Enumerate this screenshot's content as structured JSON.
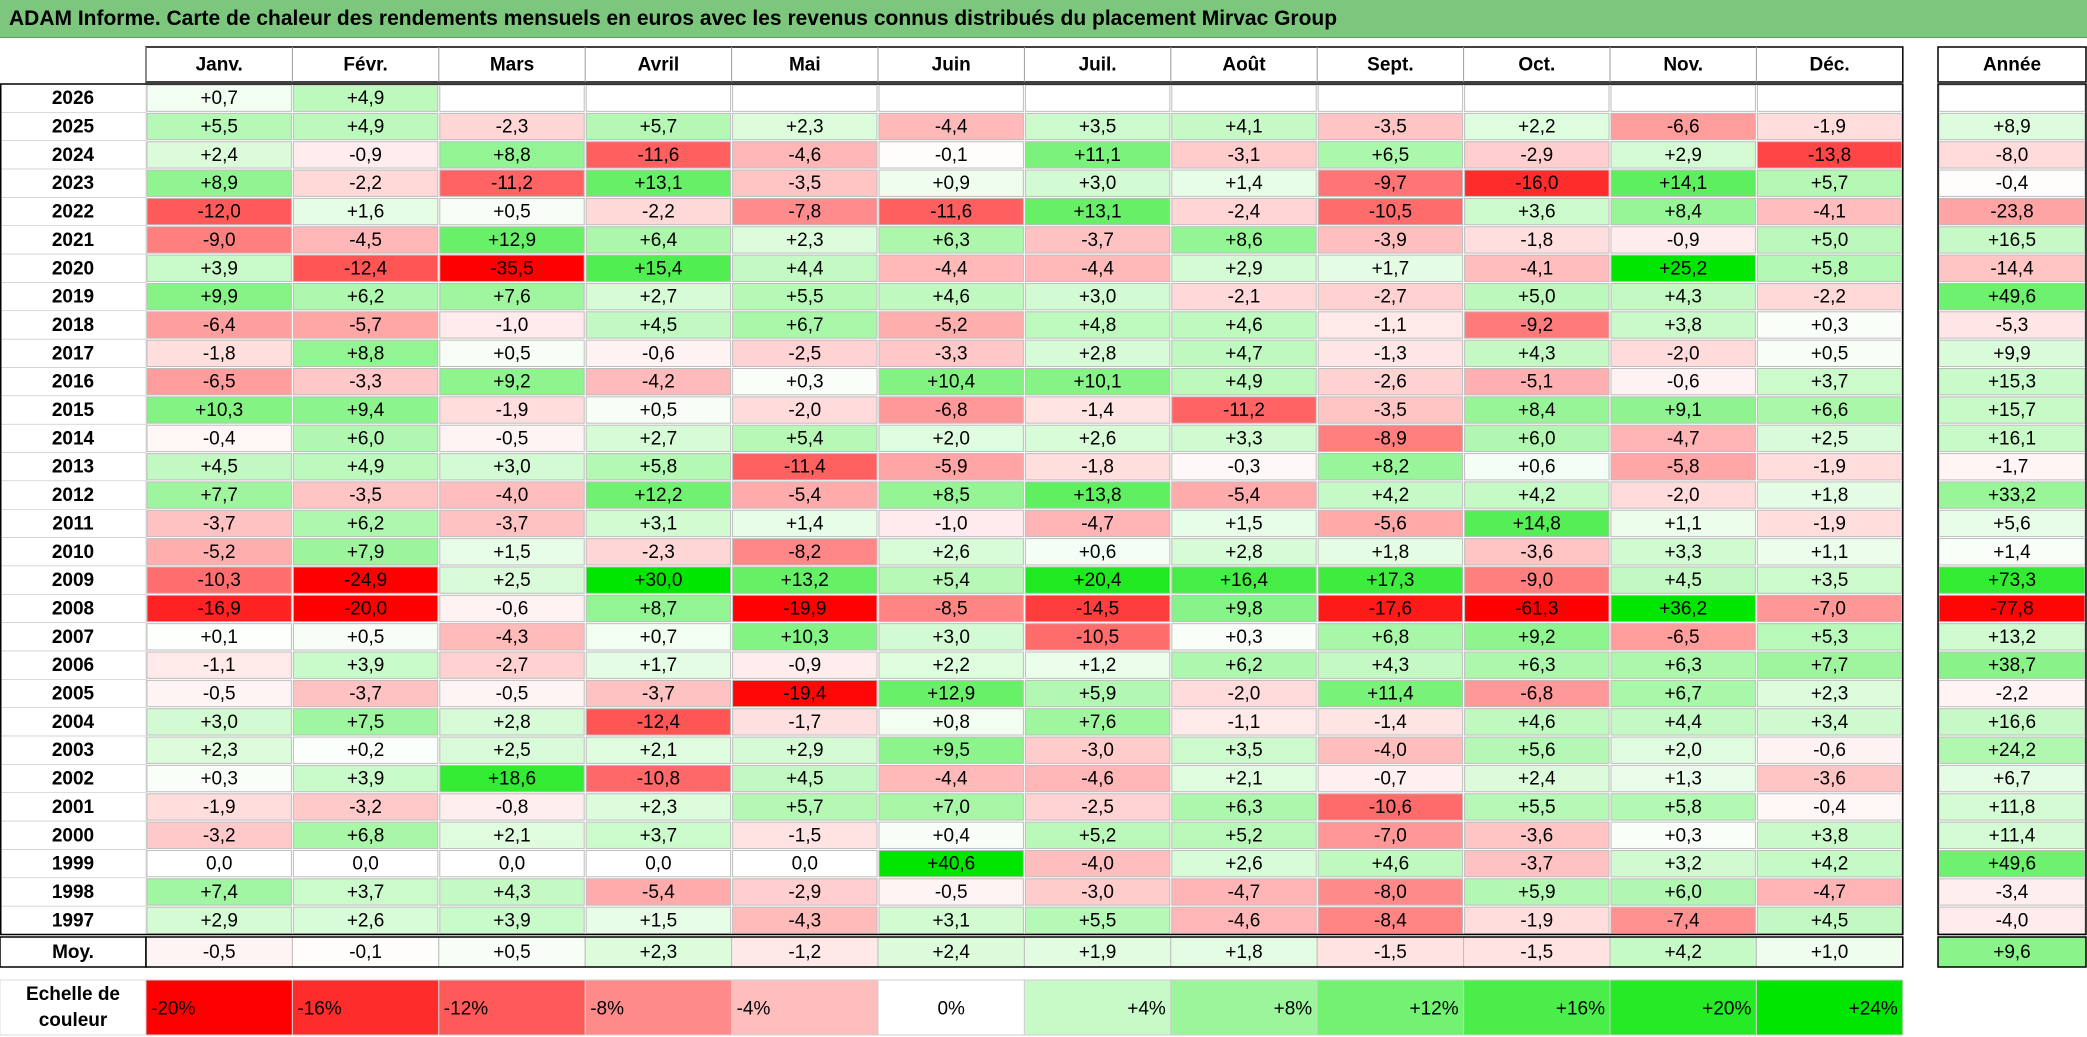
{
  "title": "ADAM Informe. Carte de chaleur des rendements mensuels en euros avec les revenus connus distribués du placement Mirvac Group",
  "chart_data": {
    "type": "heatmap",
    "columns": [
      "Janv.",
      "Févr.",
      "Mars",
      "Avril",
      "Mai",
      "Juin",
      "Juil.",
      "Août",
      "Sept.",
      "Oct.",
      "Nov.",
      "Déc."
    ],
    "year_header": "Année",
    "rows": [
      {
        "year": "2026",
        "months": [
          "+0,7",
          "+4,9",
          "",
          "",
          "",
          "",
          "",
          "",
          "",
          "",
          "",
          ""
        ],
        "annual": ""
      },
      {
        "year": "2025",
        "months": [
          "+5,5",
          "+4,9",
          "-2,3",
          "+5,7",
          "+2,3",
          "-4,4",
          "+3,5",
          "+4,1",
          "-3,5",
          "+2,2",
          "-6,6",
          "-1,9"
        ],
        "annual": "+8,9"
      },
      {
        "year": "2024",
        "months": [
          "+2,4",
          "-0,9",
          "+8,8",
          "-11,6",
          "-4,6",
          "-0,1",
          "+11,1",
          "-3,1",
          "+6,5",
          "-2,9",
          "+2,9",
          "-13,8"
        ],
        "annual": "-8,0"
      },
      {
        "year": "2023",
        "months": [
          "+8,9",
          "-2,2",
          "-11,2",
          "+13,1",
          "-3,5",
          "+0,9",
          "+3,0",
          "+1,4",
          "-9,7",
          "-16,0",
          "+14,1",
          "+5,7"
        ],
        "annual": "-0,4"
      },
      {
        "year": "2022",
        "months": [
          "-12,0",
          "+1,6",
          "+0,5",
          "-2,2",
          "-7,8",
          "-11,6",
          "+13,1",
          "-2,4",
          "-10,5",
          "+3,6",
          "+8,4",
          "-4,1"
        ],
        "annual": "-23,8"
      },
      {
        "year": "2021",
        "months": [
          "-9,0",
          "-4,5",
          "+12,9",
          "+6,4",
          "+2,3",
          "+6,3",
          "-3,7",
          "+8,6",
          "-3,9",
          "-1,8",
          "-0,9",
          "+5,0"
        ],
        "annual": "+16,5"
      },
      {
        "year": "2020",
        "months": [
          "+3,9",
          "-12,4",
          "-35,5",
          "+15,4",
          "+4,4",
          "-4,4",
          "-4,4",
          "+2,9",
          "+1,7",
          "-4,1",
          "+25,2",
          "+5,8"
        ],
        "annual": "-14,4"
      },
      {
        "year": "2019",
        "months": [
          "+9,9",
          "+6,2",
          "+7,6",
          "+2,7",
          "+5,5",
          "+4,6",
          "+3,0",
          "-2,1",
          "-2,7",
          "+5,0",
          "+4,3",
          "-2,2"
        ],
        "annual": "+49,6"
      },
      {
        "year": "2018",
        "months": [
          "-6,4",
          "-5,7",
          "-1,0",
          "+4,5",
          "+6,7",
          "-5,2",
          "+4,8",
          "+4,6",
          "-1,1",
          "-9,2",
          "+3,8",
          "+0,3"
        ],
        "annual": "-5,3"
      },
      {
        "year": "2017",
        "months": [
          "-1,8",
          "+8,8",
          "+0,5",
          "-0,6",
          "-2,5",
          "-3,3",
          "+2,8",
          "+4,7",
          "-1,3",
          "+4,3",
          "-2,0",
          "+0,5"
        ],
        "annual": "+9,9"
      },
      {
        "year": "2016",
        "months": [
          "-6,5",
          "-3,3",
          "+9,2",
          "-4,2",
          "+0,3",
          "+10,4",
          "+10,1",
          "+4,9",
          "-2,6",
          "-5,1",
          "-0,6",
          "+3,7"
        ],
        "annual": "+15,3"
      },
      {
        "year": "2015",
        "months": [
          "+10,3",
          "+9,4",
          "-1,9",
          "+0,5",
          "-2,0",
          "-6,8",
          "-1,4",
          "-11,2",
          "-3,5",
          "+8,4",
          "+9,1",
          "+6,6"
        ],
        "annual": "+15,7"
      },
      {
        "year": "2014",
        "months": [
          "-0,4",
          "+6,0",
          "-0,5",
          "+2,7",
          "+5,4",
          "+2,0",
          "+2,6",
          "+3,3",
          "-8,9",
          "+6,0",
          "-4,7",
          "+2,5"
        ],
        "annual": "+16,1"
      },
      {
        "year": "2013",
        "months": [
          "+4,5",
          "+4,9",
          "+3,0",
          "+5,8",
          "-11,4",
          "-5,9",
          "-1,8",
          "-0,3",
          "+8,2",
          "+0,6",
          "-5,8",
          "-1,9"
        ],
        "annual": "-1,7"
      },
      {
        "year": "2012",
        "months": [
          "+7,7",
          "-3,5",
          "-4,0",
          "+12,2",
          "-5,4",
          "+8,5",
          "+13,8",
          "-5,4",
          "+4,2",
          "+4,2",
          "-2,0",
          "+1,8"
        ],
        "annual": "+33,2"
      },
      {
        "year": "2011",
        "months": [
          "-3,7",
          "+6,2",
          "-3,7",
          "+3,1",
          "+1,4",
          "-1,0",
          "-4,7",
          "+1,5",
          "-5,6",
          "+14,8",
          "+1,1",
          "-1,9"
        ],
        "annual": "+5,6"
      },
      {
        "year": "2010",
        "months": [
          "-5,2",
          "+7,9",
          "+1,5",
          "-2,3",
          "-8,2",
          "+2,6",
          "+0,6",
          "+2,8",
          "+1,8",
          "-3,6",
          "+3,3",
          "+1,1"
        ],
        "annual": "+1,4"
      },
      {
        "year": "2009",
        "months": [
          "-10,3",
          "-24,9",
          "+2,5",
          "+30,0",
          "+13,2",
          "+5,4",
          "+20,4",
          "+16,4",
          "+17,3",
          "-9,0",
          "+4,5",
          "+3,5"
        ],
        "annual": "+73,3"
      },
      {
        "year": "2008",
        "months": [
          "-16,9",
          "-20,0",
          "-0,6",
          "+8,7",
          "-19,9",
          "-8,5",
          "-14,5",
          "+9,8",
          "-17,6",
          "-61,3",
          "+36,2",
          "-7,0"
        ],
        "annual": "-77,8"
      },
      {
        "year": "2007",
        "months": [
          "+0,1",
          "+0,5",
          "-4,3",
          "+0,7",
          "+10,3",
          "+3,0",
          "-10,5",
          "+0,3",
          "+6,8",
          "+9,2",
          "-6,5",
          "+5,3"
        ],
        "annual": "+13,2"
      },
      {
        "year": "2006",
        "months": [
          "-1,1",
          "+3,9",
          "-2,7",
          "+1,7",
          "-0,9",
          "+2,2",
          "+1,2",
          "+6,2",
          "+4,3",
          "+6,3",
          "+6,3",
          "+7,7"
        ],
        "annual": "+38,7"
      },
      {
        "year": "2005",
        "months": [
          "-0,5",
          "-3,7",
          "-0,5",
          "-3,7",
          "-19,4",
          "+12,9",
          "+5,9",
          "-2,0",
          "+11,4",
          "-6,8",
          "+6,7",
          "+2,3"
        ],
        "annual": "-2,2"
      },
      {
        "year": "2004",
        "months": [
          "+3,0",
          "+7,5",
          "+2,8",
          "-12,4",
          "-1,7",
          "+0,8",
          "+7,6",
          "-1,1",
          "-1,4",
          "+4,6",
          "+4,4",
          "+3,4"
        ],
        "annual": "+16,6"
      },
      {
        "year": "2003",
        "months": [
          "+2,3",
          "+0,2",
          "+2,5",
          "+2,1",
          "+2,9",
          "+9,5",
          "-3,0",
          "+3,5",
          "-4,0",
          "+5,6",
          "+2,0",
          "-0,6"
        ],
        "annual": "+24,2"
      },
      {
        "year": "2002",
        "months": [
          "+0,3",
          "+3,9",
          "+18,6",
          "-10,8",
          "+4,5",
          "-4,4",
          "-4,6",
          "+2,1",
          "-0,7",
          "+2,4",
          "+1,3",
          "-3,6"
        ],
        "annual": "+6,7"
      },
      {
        "year": "2001",
        "months": [
          "-1,9",
          "-3,2",
          "-0,8",
          "+2,3",
          "+5,7",
          "+7,0",
          "-2,5",
          "+6,3",
          "-10,6",
          "+5,5",
          "+5,8",
          "-0,4"
        ],
        "annual": "+11,8"
      },
      {
        "year": "2000",
        "months": [
          "-3,2",
          "+6,8",
          "+2,1",
          "+3,7",
          "-1,5",
          "+0,4",
          "+5,2",
          "+5,2",
          "-7,0",
          "-3,6",
          "+0,3",
          "+3,8"
        ],
        "annual": "+11,4"
      },
      {
        "year": "1999",
        "months": [
          "0,0",
          "0,0",
          "0,0",
          "0,0",
          "0,0",
          "+40,6",
          "-4,0",
          "+2,6",
          "+4,6",
          "-3,7",
          "+3,2",
          "+4,2"
        ],
        "annual": "+49,6"
      },
      {
        "year": "1998",
        "months": [
          "+7,4",
          "+3,7",
          "+4,3",
          "-5,4",
          "-2,9",
          "-0,5",
          "-3,0",
          "-4,7",
          "-8,0",
          "+5,9",
          "+6,0",
          "-4,7"
        ],
        "annual": "-3,4"
      },
      {
        "year": "1997",
        "months": [
          "+2,9",
          "+2,6",
          "+3,9",
          "+1,5",
          "-4,3",
          "+3,1",
          "+5,5",
          "-4,6",
          "-8,4",
          "-1,9",
          "-7,4",
          "+4,5"
        ],
        "annual": "-4,0"
      }
    ],
    "average": {
      "label": "Moy.",
      "months": [
        "-0,5",
        "-0,1",
        "+0,5",
        "+2,3",
        "-1,2",
        "+2,4",
        "+1,9",
        "+1,8",
        "-1,5",
        "-1,5",
        "+4,2",
        "+1,0"
      ],
      "annual": "+9,6"
    },
    "scale": {
      "label_line1": "Echelle de",
      "label_line2": "couleur",
      "items": [
        {
          "label": "-20%",
          "value": -20
        },
        {
          "label": "-16%",
          "value": -16
        },
        {
          "label": "-12%",
          "value": -12
        },
        {
          "label": "-8%",
          "value": -8
        },
        {
          "label": "-4%",
          "value": -4
        },
        {
          "label": "0%",
          "value": 0
        },
        {
          "label": "+4%",
          "value": 4
        },
        {
          "label": "+8%",
          "value": 8
        },
        {
          "label": "+12%",
          "value": 12
        },
        {
          "label": "+16%",
          "value": 16
        },
        {
          "label": "+20%",
          "value": 20
        },
        {
          "label": "+24%",
          "value": 24
        }
      ]
    },
    "colors": {
      "negative_max": "#ff0000",
      "positive_max": "#00e600",
      "neutral": "#ffffff"
    }
  }
}
